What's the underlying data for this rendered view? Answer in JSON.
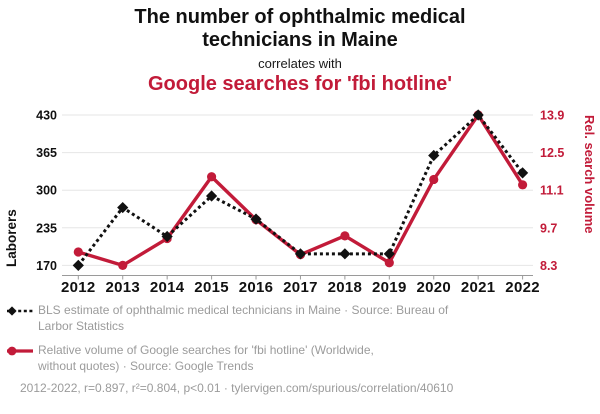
{
  "header": {
    "title": "The number of ophthalmic medical\ntechnicians in Maine",
    "connector": "correlates with",
    "subtitle": "Google searches for 'fbi hotline'"
  },
  "chart_data": {
    "type": "line",
    "title": "The number of ophthalmic medical technicians in Maine correlates with Google searches for 'fbi hotline'",
    "x": [
      2012,
      2013,
      2014,
      2015,
      2016,
      2017,
      2018,
      2019,
      2020,
      2021,
      2022
    ],
    "series": [
      {
        "name": "BLS estimate of ophthalmic medical technicians in Maine",
        "axis": "left",
        "color": "#111111",
        "style": "dashed",
        "marker": "diamond",
        "values": [
          170,
          270,
          220,
          290,
          250,
          190,
          190,
          190,
          360,
          430,
          330
        ]
      },
      {
        "name": "Relative volume of Google searches for 'fbi hotline'",
        "axis": "right",
        "color": "#c21b39",
        "style": "solid",
        "marker": "circle",
        "values": [
          8.8,
          8.3,
          9.3,
          11.6,
          10.0,
          8.7,
          9.4,
          8.4,
          11.5,
          13.9,
          11.3
        ]
      }
    ],
    "left_axis": {
      "label": "Laborers",
      "ticks": [
        430,
        365,
        300,
        235,
        170
      ],
      "min": 170,
      "max": 430
    },
    "right_axis": {
      "label": "Rel. search volume",
      "ticks": [
        13.9,
        12.5,
        11.1,
        9.7,
        8.3
      ],
      "min": 8.3,
      "max": 13.9
    },
    "grid": true,
    "legend_position": "bottom"
  },
  "legend": [
    {
      "marker": "black-diamond-dashed",
      "text": "BLS estimate of ophthalmic medical technicians in Maine · Source: Bureau of\nLarbor Statistics"
    },
    {
      "marker": "red-circle-solid",
      "text": "Relative volume of Google searches for 'fbi hotline' (Worldwide,\nwithout quotes) · Source: Google Trends"
    }
  ],
  "footer": {
    "text": "2012-2022, r=0.897, r²=0.804, p<0.01 · tylervigen.com/spurious/correlation/40610",
    "years_range": "2012-2022",
    "r": 0.897,
    "r_squared": 0.804,
    "p": "<0.01",
    "url": "tylervigen.com/spurious/correlation/40610"
  },
  "colors": {
    "accent_red": "#c21b39",
    "black": "#111111",
    "text_gray": "#9b9b9b",
    "grid": "#e6e6e6",
    "axis": "#9a9a9a"
  }
}
